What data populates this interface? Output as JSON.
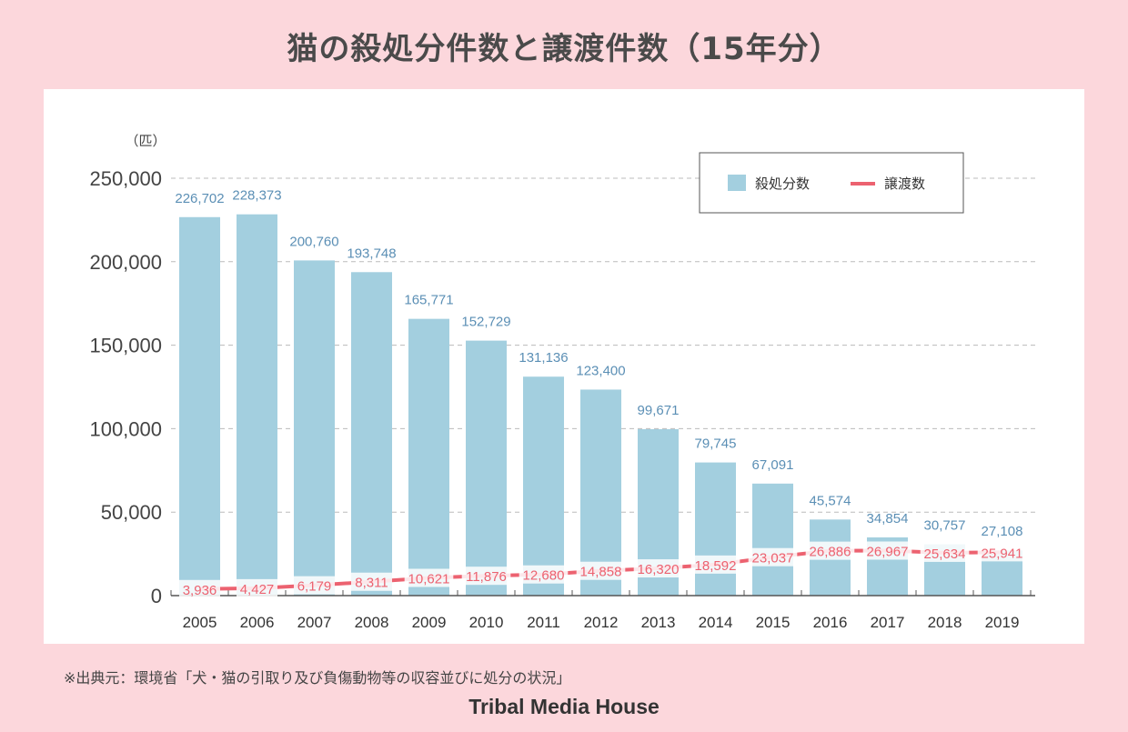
{
  "title": "猫の殺処分件数と譲渡件数（15年分）",
  "source": "※出典元：環境省「犬・猫の引取り及び負傷動物等の収容並びに処分の状況」",
  "brand": "Tribal Media House",
  "colors": {
    "bar": "#a3cfdf",
    "line": "#ec6270",
    "bar_label": "#5b8fb5",
    "background": "#fcd7dc"
  },
  "chart_data": {
    "type": "bar",
    "unit_label": "（匹）",
    "categories": [
      "2005",
      "2006",
      "2007",
      "2008",
      "2009",
      "2010",
      "2011",
      "2012",
      "2013",
      "2014",
      "2015",
      "2016",
      "2017",
      "2018",
      "2019"
    ],
    "ylim": [
      0,
      250000
    ],
    "yticks": [
      0,
      50000,
      100000,
      150000,
      200000,
      250000
    ],
    "ytick_labels": [
      "0",
      "50,000",
      "100,000",
      "150,000",
      "200,000",
      "250,000"
    ],
    "grid": true,
    "legend_position": "top-right",
    "series": [
      {
        "name": "殺処分数",
        "type": "bar",
        "values": [
          226702,
          228373,
          200760,
          193748,
          165771,
          152729,
          131136,
          123400,
          99671,
          79745,
          67091,
          45574,
          34854,
          30757,
          27108
        ],
        "labels": [
          "226,702",
          "228,373",
          "200,760",
          "193,748",
          "165,771",
          "152,729",
          "131,136",
          "123,400",
          "99,671",
          "79,745",
          "67,091",
          "45,574",
          "34,854",
          "30,757",
          "27,108"
        ]
      },
      {
        "name": "譲渡数",
        "type": "line",
        "values": [
          3936,
          4427,
          6179,
          8311,
          10621,
          11876,
          12680,
          14858,
          16320,
          18592,
          23037,
          26886,
          26967,
          25634,
          25941
        ],
        "labels": [
          "3,936",
          "4,427",
          "6,179",
          "8,311",
          "10,621",
          "11,876",
          "12,680",
          "14,858",
          "16,320",
          "18,592",
          "23,037",
          "26,886",
          "26,967",
          "25,634",
          "25,941"
        ]
      }
    ]
  }
}
